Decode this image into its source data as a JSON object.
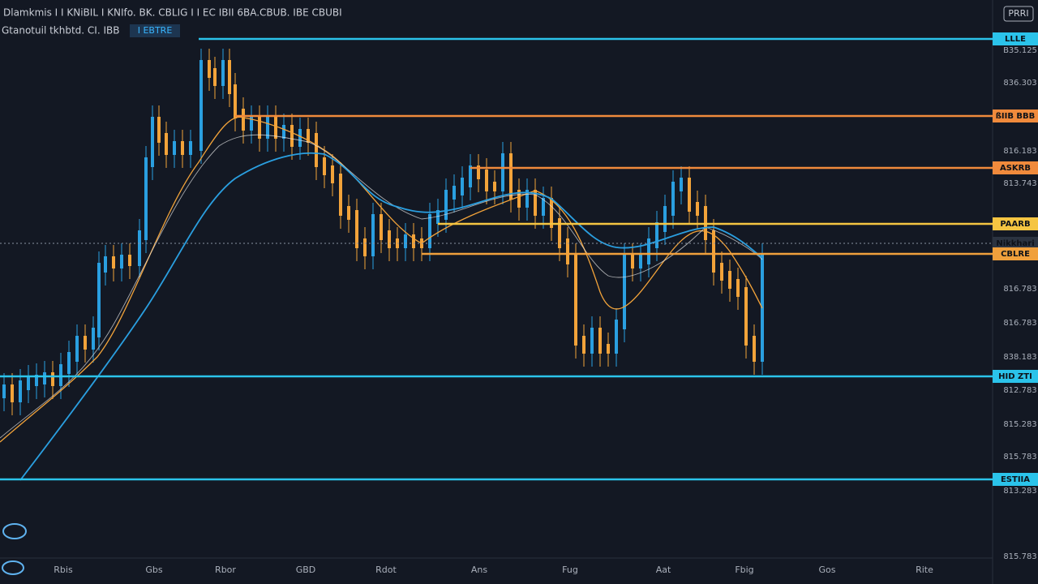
{
  "header": {
    "title": "Dlamkmis I I KNiBIL I KNIfo. BK. CBLIG I I EC IBII 6BA.CBUB. IBE CBUBI",
    "subtitle": "Gtanotuil tkhbtd. CI. IBB",
    "badge": "I EBTRE",
    "corner": "PRRI"
  },
  "levels": [
    {
      "label": "LLLE",
      "color": "#2bc3ea"
    },
    {
      "label": "ßIIB BBB",
      "color": "#f08a3c"
    },
    {
      "label": "ASKRB",
      "color": "#f08a3c"
    },
    {
      "label": "PAARB",
      "color": "#f5c542"
    },
    {
      "label": "Nikkhari",
      "color": "#8a93a3"
    },
    {
      "label": "CBLRE",
      "color": "#f0a03c"
    },
    {
      "label": "HID ZTI",
      "color": "#2bc3ea"
    },
    {
      "label": "ESTIIA",
      "color": "#2bc3ea"
    }
  ],
  "price_axis": [
    "B35.125",
    "836.303",
    "816.183",
    "813.743",
    "816.783",
    "816.783",
    "838.183",
    "812.783",
    "815.283",
    "815.783",
    "813.283",
    "815.783"
  ],
  "time_axis": [
    "Rbis",
    "Gbs",
    "Rbor",
    "GBD",
    "Rdot",
    "Ans",
    "Fug",
    "Aat",
    "Fbig",
    "Gos",
    "Rite"
  ]
}
